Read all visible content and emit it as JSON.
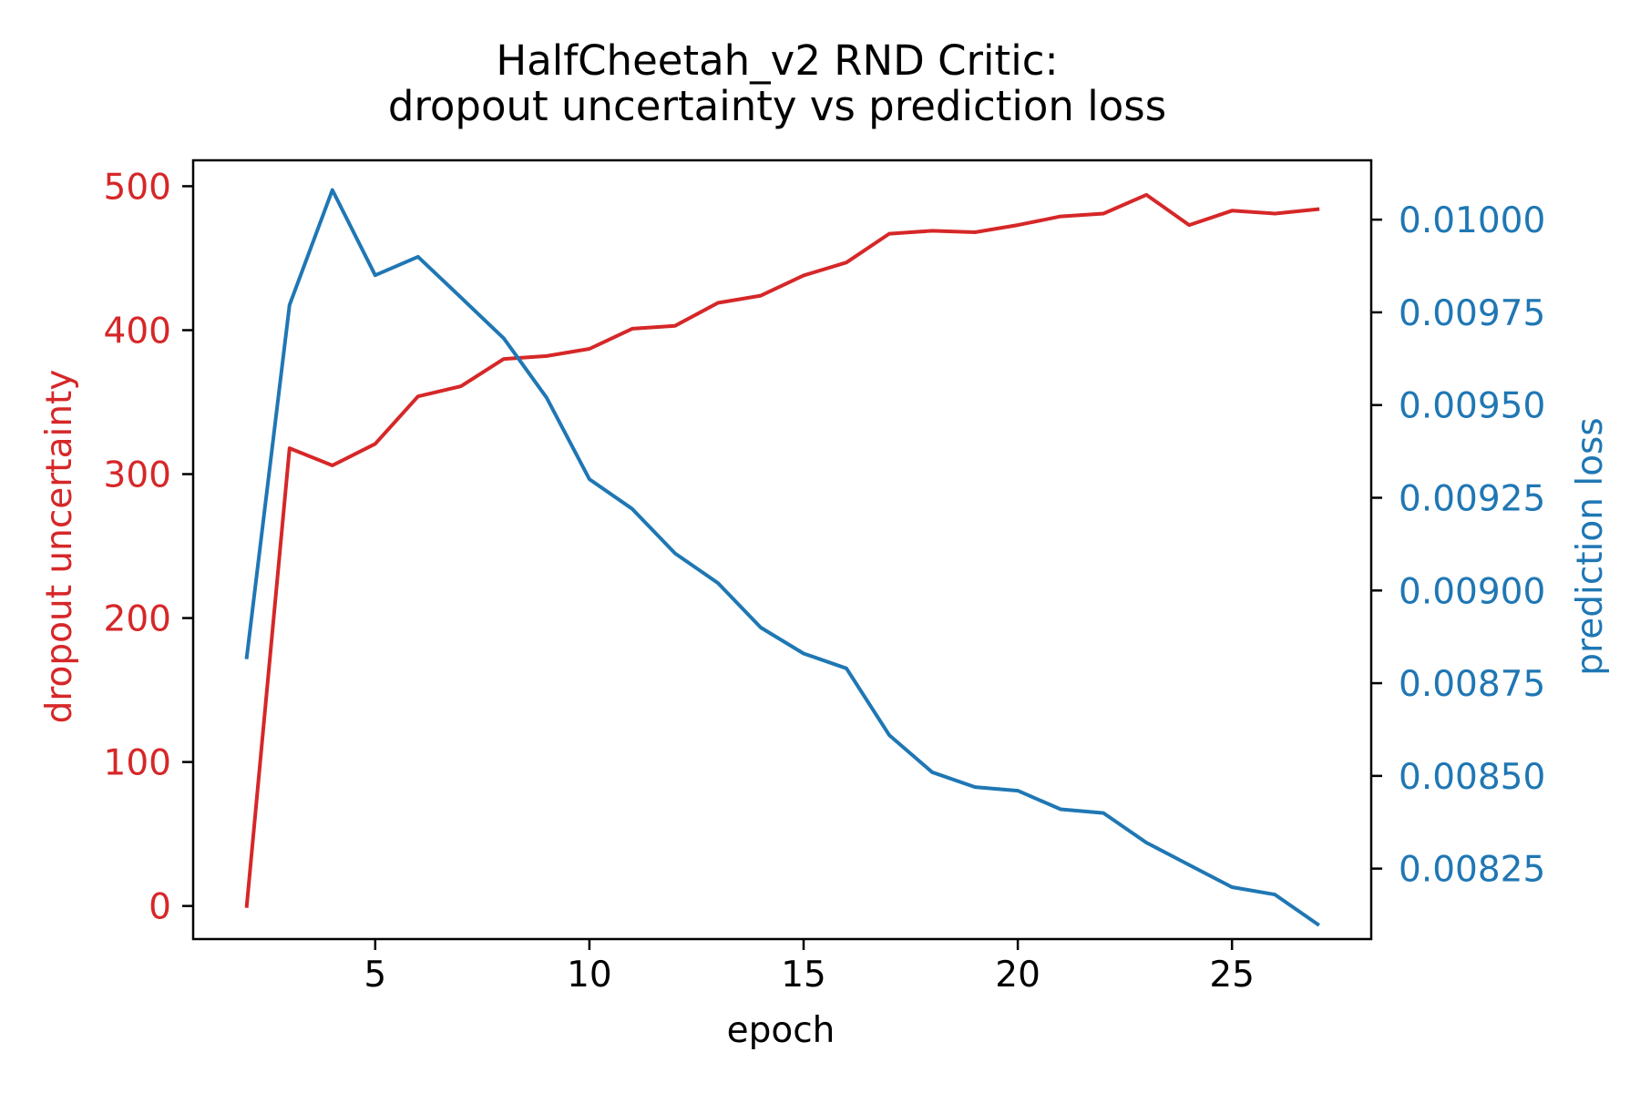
{
  "chart_data": {
    "type": "line",
    "title_line1": "HalfCheetah_v2 RND Critic:",
    "title_line2": "dropout uncertainty vs prediction loss",
    "xlabel": "epoch",
    "ylabel_left": "dropout uncertainty",
    "ylabel_right": "prediction loss",
    "xlim": [
      0.75,
      28.25
    ],
    "ylim_left": [
      -23,
      518
    ],
    "ylim_right": [
      0.00806,
      0.01016
    ],
    "x_ticks": [
      5,
      10,
      15,
      20,
      25
    ],
    "x_tick_labels": [
      "5",
      "10",
      "15",
      "20",
      "25"
    ],
    "y_left_ticks": [
      0,
      100,
      200,
      300,
      400,
      500
    ],
    "y_left_tick_labels": [
      "0",
      "100",
      "200",
      "300",
      "400",
      "500"
    ],
    "y_right_ticks": [
      0.00825,
      0.0085,
      0.00875,
      0.009,
      0.00925,
      0.0095,
      0.00975,
      0.01
    ],
    "y_right_tick_labels": [
      "0.00825",
      "0.00850",
      "0.00875",
      "0.00900",
      "0.00925",
      "0.00950",
      "0.00975",
      "0.01000"
    ],
    "grid": false,
    "colors": {
      "left_series": "#d62728",
      "right_series": "#1f77b4",
      "axes": "#000000",
      "text": "#000000"
    },
    "x": [
      2,
      3,
      4,
      5,
      6,
      7,
      8,
      9,
      10,
      11,
      12,
      13,
      14,
      15,
      16,
      17,
      18,
      19,
      20,
      21,
      22,
      23,
      24,
      25,
      26,
      27
    ],
    "series": [
      {
        "axis": "left",
        "values": [
          0,
          318,
          306,
          321,
          354,
          361,
          380,
          382,
          387,
          401,
          403,
          419,
          424,
          438,
          447,
          467,
          469,
          468,
          473,
          479,
          481,
          494,
          473,
          483,
          481,
          484
        ]
      },
      {
        "axis": "right",
        "values": [
          0.00882,
          0.00977,
          0.01008,
          0.00985,
          0.0099,
          0.00979,
          0.00968,
          0.00952,
          0.0093,
          0.00922,
          0.0091,
          0.00902,
          0.0089,
          0.00883,
          0.00879,
          0.00861,
          0.00851,
          0.00847,
          0.00846,
          0.00841,
          0.0084,
          0.00832,
          0.00826,
          0.0082,
          0.00818,
          0.0081
        ]
      }
    ]
  }
}
